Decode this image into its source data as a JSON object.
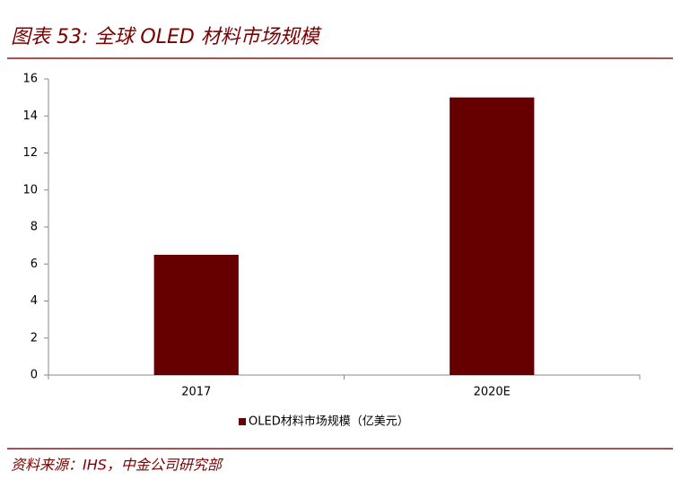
{
  "chart_data": {
    "type": "bar",
    "title": "图表 53:  全球 OLED 材料市场规模",
    "categories": [
      "2017",
      "2020E"
    ],
    "series": [
      {
        "name": "OLED材料市场规模（亿美元）",
        "color": "#660000",
        "values": [
          6.5,
          15
        ]
      }
    ],
    "ylim": [
      0,
      16
    ],
    "yticks": [
      0,
      2,
      4,
      6,
      8,
      10,
      12,
      14,
      16
    ],
    "grid": false,
    "legend": "bottom",
    "source": "资料来源：IHS，中金公司研究部"
  }
}
